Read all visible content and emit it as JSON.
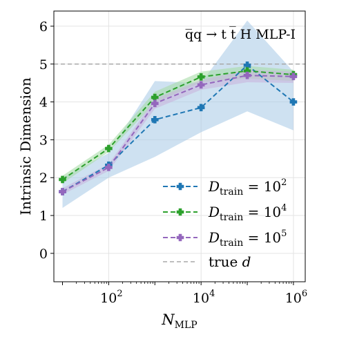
{
  "chart_data": {
    "type": "line",
    "title": "",
    "annotation": "q̅q → t t̅ H MLP-I",
    "xlabel_main": "N",
    "xlabel_sub": "MLP",
    "ylabel": "Intrinsic Dimension",
    "xscale": "log",
    "xlim": [
      6.5,
      1800000
    ],
    "ylim": [
      -0.75,
      6.4
    ],
    "grid": true,
    "legend_position": "lower-right",
    "x_ticks": [
      {
        "value": 100,
        "base": "10",
        "exp": "2"
      },
      {
        "value": 10000,
        "base": "10",
        "exp": "4"
      },
      {
        "value": 1000000,
        "base": "10",
        "exp": "6"
      }
    ],
    "y_ticks": [
      {
        "value": 0,
        "label": "0"
      },
      {
        "value": 1,
        "label": "1"
      },
      {
        "value": 2,
        "label": "2"
      },
      {
        "value": 3,
        "label": "3"
      },
      {
        "value": 4,
        "label": "4"
      },
      {
        "value": 5,
        "label": "5"
      },
      {
        "value": 6,
        "label": "6"
      }
    ],
    "x": [
      10,
      100,
      1000,
      10000,
      100000,
      1000000
    ],
    "series": [
      {
        "name_main": "D",
        "name_sub": "train",
        "name_rest": " = 10",
        "name_exp": "2",
        "color": "#1f77b4",
        "band_color": "#a6c8e6",
        "values": [
          1.63,
          2.33,
          3.53,
          3.85,
          4.97,
          4.0
        ],
        "lower": [
          1.2,
          2.0,
          2.55,
          3.2,
          3.75,
          3.25
        ],
        "upper": [
          2.0,
          2.65,
          4.55,
          4.5,
          6.15,
          4.8
        ]
      },
      {
        "name_main": "D",
        "name_sub": "train",
        "name_rest": " = 10",
        "name_exp": "4",
        "color": "#2ca02c",
        "band_color": "#a9dca9",
        "values": [
          1.95,
          2.77,
          4.12,
          4.66,
          4.82,
          4.72
        ],
        "lower": [
          1.85,
          2.68,
          3.98,
          4.52,
          4.62,
          4.55
        ],
        "upper": [
          2.05,
          2.87,
          4.27,
          4.8,
          4.95,
          4.85
        ]
      },
      {
        "name_main": "D",
        "name_sub": "train",
        "name_rest": " = 10",
        "name_exp": "5",
        "color": "#9467bd",
        "band_color": "#c9b6de",
        "values": [
          1.63,
          2.27,
          3.96,
          4.45,
          4.7,
          4.67
        ],
        "lower": [
          1.55,
          2.18,
          3.82,
          4.32,
          4.52,
          4.5
        ],
        "upper": [
          1.72,
          2.36,
          4.08,
          4.58,
          4.85,
          4.8
        ]
      }
    ],
    "reference": {
      "name": "true ",
      "name_italic": "d",
      "value": 5,
      "color": "#a8a8a8"
    }
  }
}
